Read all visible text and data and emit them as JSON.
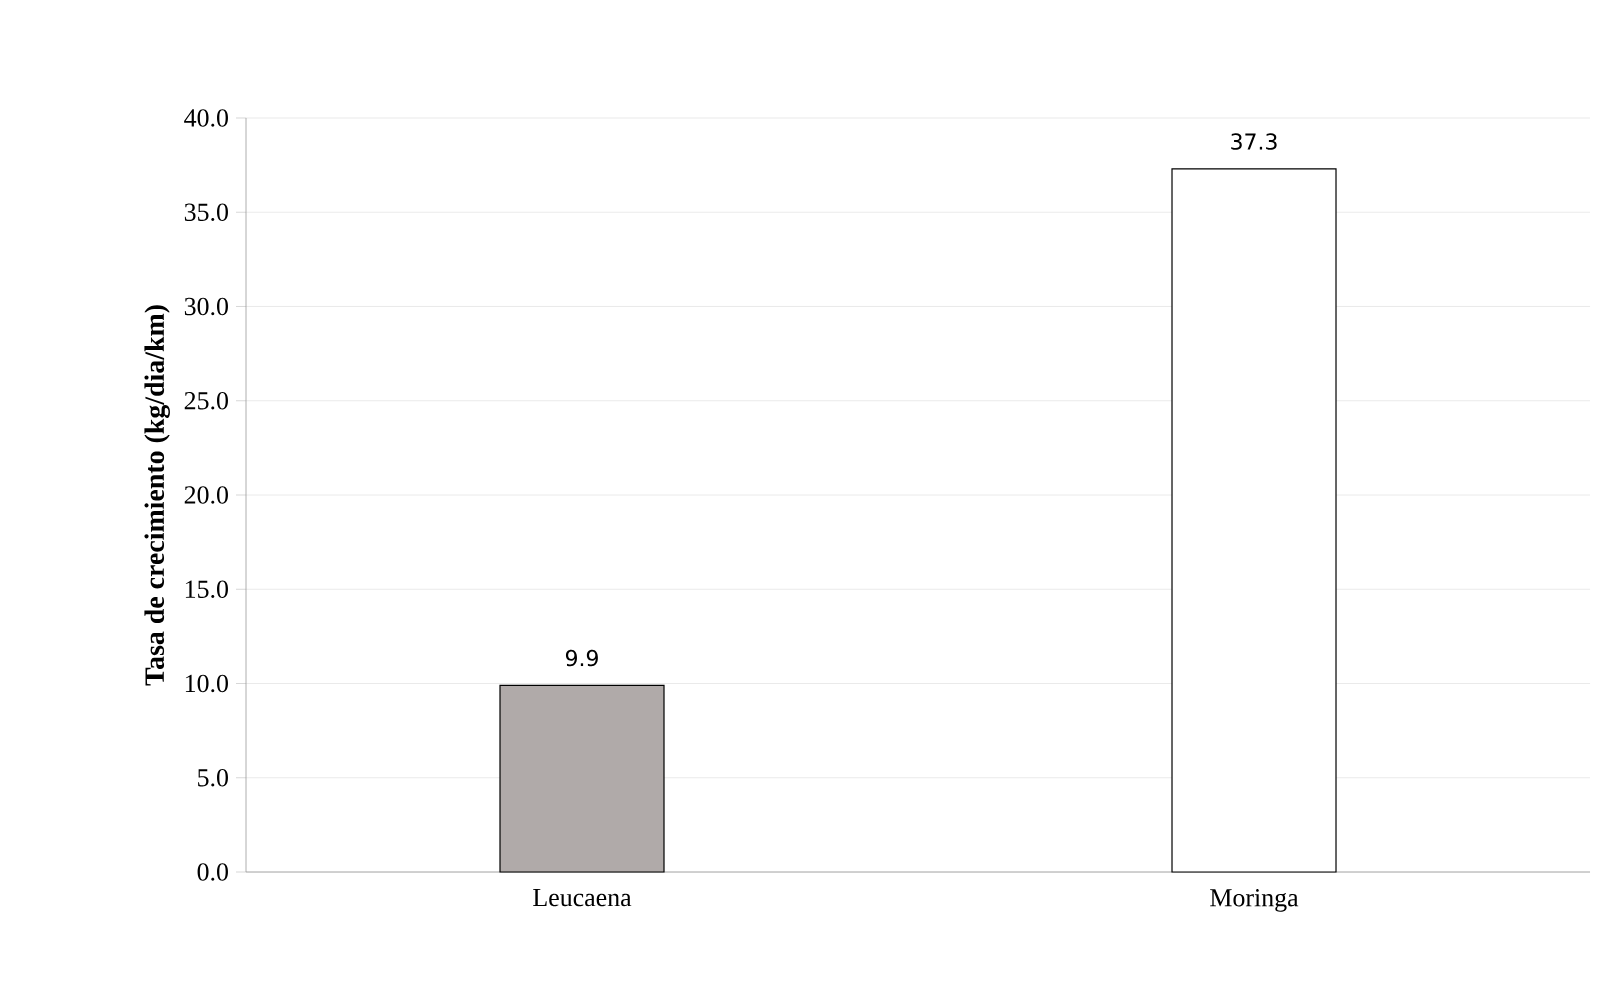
{
  "chart_data": {
    "type": "bar",
    "ylabel": "Tasa de crecimiento (kg/dia/km)",
    "categories": [
      "Leucaena",
      "Moringa"
    ],
    "values": [
      9.9,
      37.3
    ],
    "colors": [
      "#b0aaa9",
      "#ffffff"
    ],
    "ylim": [
      0,
      40
    ],
    "yticks": [
      {
        "value": 0,
        "label": "0.0"
      },
      {
        "value": 5,
        "label": "5.0"
      },
      {
        "value": 10,
        "label": "10.0"
      },
      {
        "value": 15,
        "label": "15.0"
      },
      {
        "value": 20,
        "label": "20.0"
      },
      {
        "value": 25,
        "label": "25.0"
      },
      {
        "value": 30,
        "label": "30.0"
      },
      {
        "value": 35,
        "label": "35.0"
      },
      {
        "value": 40,
        "label": "40.0"
      }
    ],
    "grid": "y",
    "data_labels": true
  }
}
